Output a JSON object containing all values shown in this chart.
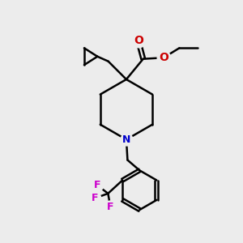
{
  "bg_color": "#ececec",
  "line_color": "#000000",
  "bond_width": 1.8,
  "N_color": "#0000cc",
  "O_color": "#cc0000",
  "F_color": "#cc00cc",
  "figsize": [
    3.0,
    3.0
  ],
  "dpi": 100,
  "xlim": [
    0,
    10
  ],
  "ylim": [
    0,
    10
  ]
}
